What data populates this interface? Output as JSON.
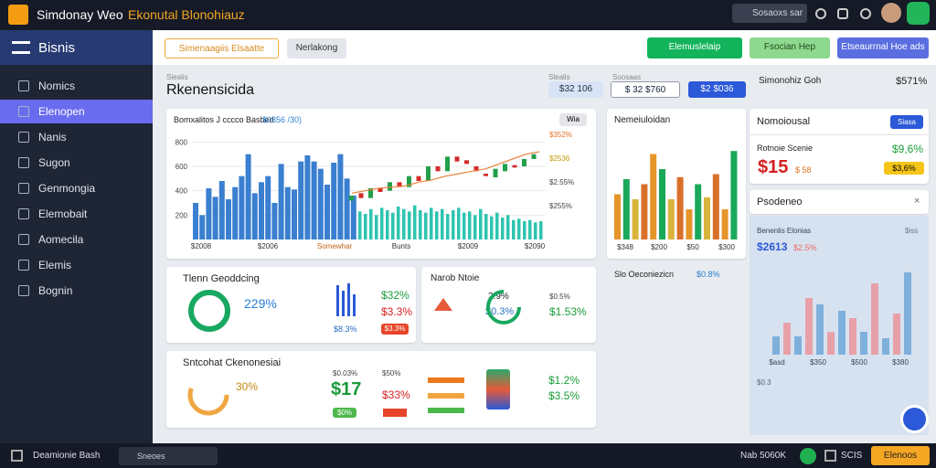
{
  "topbar": {
    "title_a": "Simdonay Weo",
    "title_b": "Ekonutal Blonohiauz",
    "search": "Sosaoxs sar"
  },
  "sidebar": {
    "header": "Bisnis",
    "items": [
      "Nomics",
      "Elenopen",
      "Nanis",
      "Sugon",
      "Genmongia",
      "Elemobait",
      "Aomecila",
      "Elemis",
      "Bognin"
    ]
  },
  "toolbar": {
    "tabs": [
      "Simenaagiis Elsaatte",
      "Nerlakong"
    ],
    "buttons": [
      "Elemuslelaip",
      "Fsocian Hep",
      "Etseaurrnal Hoe ads"
    ]
  },
  "heading": {
    "label": "Siealis",
    "title": "Rkenensicida",
    "pill_labels": [
      "Slealis",
      "Soosaas"
    ],
    "pills": [
      "$32 106",
      "$ 32 $760",
      "$2 $036"
    ],
    "side_label": "Simonohiz Goh",
    "side_value": "$571%"
  },
  "main_chart": {
    "title": "Bomxalitos J cccco Basbed",
    "legend": "$0356 /30)",
    "button": "Wia",
    "ylim": [
      0,
      900
    ],
    "yticks": [
      200,
      400,
      600,
      800
    ],
    "right_labels": [
      "$352%",
      "$2536",
      "$2.55%",
      "$255%"
    ],
    "x_labels": [
      "$2008",
      "$2006",
      "Somewhar",
      "Bunts",
      "$2009",
      "$2090"
    ],
    "blue_bars": [
      300,
      200,
      420,
      350,
      480,
      330,
      430,
      520,
      700,
      380,
      470,
      520,
      300,
      620,
      430,
      410,
      640,
      690,
      640,
      580,
      450,
      630,
      700,
      500,
      360
    ],
    "teal_bars": [
      230,
      210,
      250,
      200,
      260,
      240,
      220,
      270,
      250,
      230,
      280,
      240,
      220,
      260,
      230,
      250,
      210,
      240,
      260,
      220,
      230,
      200,
      250,
      210,
      190,
      220,
      180,
      200,
      160,
      170,
      150,
      160,
      140,
      150
    ],
    "candles": [
      [
        320,
        360
      ],
      [
        380,
        340
      ],
      [
        340,
        420
      ],
      [
        420,
        390
      ],
      [
        400,
        470
      ],
      [
        470,
        430
      ],
      [
        430,
        520
      ],
      [
        520,
        480
      ],
      [
        480,
        600
      ],
      [
        600,
        560
      ],
      [
        560,
        680
      ],
      [
        680,
        640
      ],
      [
        650,
        620
      ],
      [
        600,
        560
      ],
      [
        540,
        520
      ],
      [
        510,
        580
      ],
      [
        560,
        620
      ],
      [
        610,
        590
      ],
      [
        600,
        660
      ],
      [
        660,
        700
      ]
    ],
    "trend": [
      380,
      400,
      420,
      430,
      440,
      470,
      490,
      520,
      540,
      560,
      580,
      620,
      660,
      700,
      720
    ]
  },
  "bar_card": {
    "title": "Nemeiuloidan",
    "ylim": [
      0,
      100
    ],
    "values": [
      45,
      60,
      40,
      55,
      85,
      70,
      40,
      62,
      30,
      55,
      42,
      65,
      30,
      88
    ],
    "x_labels": [
      "$348",
      "$200",
      "$50",
      "$300"
    ]
  },
  "right_col": {
    "card1_title": "Nomoiousal",
    "card1_button": "Siasa",
    "row_label": "Rotnoie Scenie",
    "row_value": "$9,6%",
    "big": "$15",
    "big_sub": "$ 58",
    "badge": "$3,6%",
    "card2_title": "Psodeneo",
    "panel_title": "Benenlis Elonias",
    "panel_sub": "$iss",
    "panel_value": "$2613",
    "panel_pct": "$2.5%",
    "ylim": [
      0,
      100
    ],
    "values": [
      20,
      35,
      20,
      62,
      55,
      25,
      48,
      40,
      25,
      78,
      18,
      45,
      90
    ],
    "x_labels": [
      "$asd",
      "$350",
      "$500",
      "$380"
    ],
    "foot": "$0.3"
  },
  "card_a": {
    "title": "Tlenn Geoddcing",
    "pct": "229%",
    "label": "$8.3%",
    "v1": "$32%",
    "v2": "$3.3%",
    "v3": "$3.3%"
  },
  "card_b": {
    "title": "Narob Ntoie",
    "p1": "2.9%",
    "p2": "$0.3%",
    "lab": "$0.5%",
    "val": "$1.53%"
  },
  "side_text": {
    "title": "Slo Oeconiezicn",
    "sub": "$0.8%"
  },
  "card_c": {
    "title": "Sntcohat Ckenonesiai",
    "pct": "30%",
    "lab1": "$0.03%",
    "big": "$17",
    "badge": "$0%",
    "lab2": "$50%",
    "v2": "$33%",
    "v3": "$1.2%",
    "v4": "$3.5%"
  },
  "bottom": {
    "left": "Deamionie Bash",
    "dropdown": "Sneoes",
    "right": "Nab 5060K",
    "mid": "SCIS",
    "button": "Elenoos"
  }
}
